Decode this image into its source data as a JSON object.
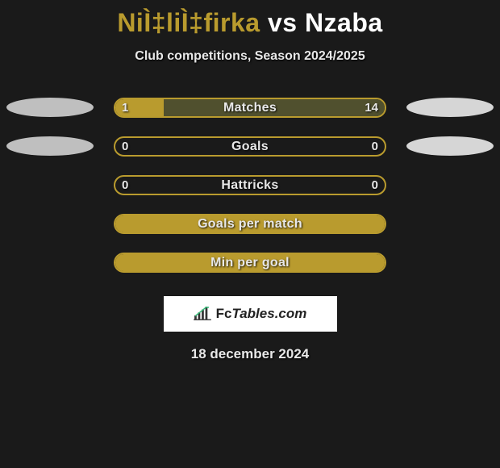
{
  "title": {
    "player1": "NiÌ‡liÌ‡firka",
    "vs": "vs",
    "player2": "Nzaba",
    "player1_color": "#b99b2e",
    "player2_color": "#ffffff"
  },
  "subtitle": "Club competitions, Season 2024/2025",
  "colors": {
    "background": "#1a1a1a",
    "accent_left": "#b99b2e",
    "accent_right": "#d0d0d0",
    "bar_border": "#b99b2e",
    "text": "#e8e8e8"
  },
  "ellipse": {
    "left_color": "#bfbfbf",
    "right_color": "#d6d6d6"
  },
  "rows": [
    {
      "label": "Matches",
      "left_val": "1",
      "right_val": "14",
      "left_fill_pct": 18,
      "right_fill_pct": 82,
      "left_fill_color": "#b99b2e",
      "right_fill_color": "#50502e",
      "border_color": "#b99b2e",
      "show_vals": true,
      "left_ellipse": true,
      "right_ellipse": true
    },
    {
      "label": "Goals",
      "left_val": "0",
      "right_val": "0",
      "left_fill_pct": 0,
      "right_fill_pct": 0,
      "left_fill_color": "#b99b2e",
      "right_fill_color": "#50502e",
      "border_color": "#b99b2e",
      "show_vals": true,
      "left_ellipse": true,
      "right_ellipse": true
    },
    {
      "label": "Hattricks",
      "left_val": "0",
      "right_val": "0",
      "left_fill_pct": 0,
      "right_fill_pct": 0,
      "left_fill_color": "#b99b2e",
      "right_fill_color": "#50502e",
      "border_color": "#b99b2e",
      "show_vals": true,
      "left_ellipse": false,
      "right_ellipse": false
    },
    {
      "label": "Goals per match",
      "left_val": "",
      "right_val": "",
      "left_fill_pct": 100,
      "right_fill_pct": 0,
      "left_fill_color": "#b99b2e",
      "right_fill_color": "#50502e",
      "border_color": "#b99b2e",
      "show_vals": false,
      "left_ellipse": false,
      "right_ellipse": false
    },
    {
      "label": "Min per goal",
      "left_val": "",
      "right_val": "",
      "left_fill_pct": 100,
      "right_fill_pct": 0,
      "left_fill_color": "#b99b2e",
      "right_fill_color": "#50502e",
      "border_color": "#b99b2e",
      "show_vals": false,
      "left_ellipse": false,
      "right_ellipse": false
    }
  ],
  "logo": {
    "text_fc": "Fc",
    "text_rest": "Tables.com"
  },
  "date": "18 december 2024"
}
